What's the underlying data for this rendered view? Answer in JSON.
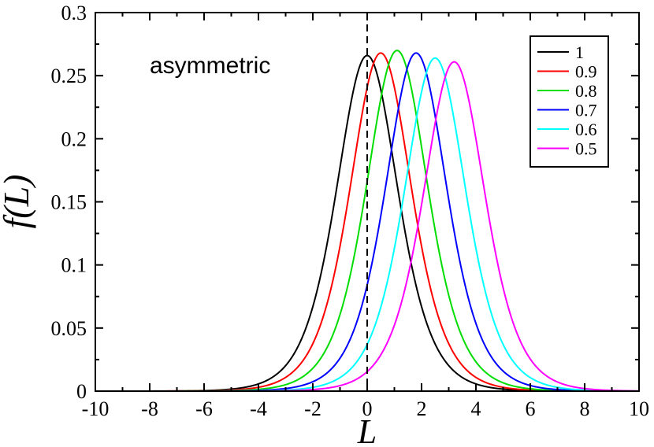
{
  "chart_data": {
    "type": "line",
    "title": "",
    "xlabel": "L",
    "ylabel": "f(L)",
    "xlim": [
      -10,
      10
    ],
    "ylim": [
      0,
      0.3
    ],
    "xticks": [
      "-10",
      "-8",
      "-6",
      "-4",
      "-2",
      "0",
      "2",
      "4",
      "6",
      "8",
      "10"
    ],
    "yticks": [
      "0",
      "0.05",
      "0.1",
      "0.15",
      "0.2",
      "0.25",
      "0.3"
    ],
    "annotation": "asymmetric",
    "reference_line": {
      "x": 0,
      "style": "dashed"
    },
    "grid": false,
    "legend_position": "top-right",
    "series": [
      {
        "name": "1",
        "color": "#000000",
        "peak_x": 0.0,
        "peak_y": 0.266,
        "points": [
          [
            -10,
            0
          ],
          [
            -8,
            0.0003
          ],
          [
            -6,
            0.003
          ],
          [
            -4,
            0.022
          ],
          [
            -3,
            0.05
          ],
          [
            -2,
            0.105
          ],
          [
            -1,
            0.19
          ],
          [
            0,
            0.266
          ],
          [
            1,
            0.19
          ],
          [
            2,
            0.105
          ],
          [
            3,
            0.05
          ],
          [
            4,
            0.022
          ],
          [
            6,
            0.003
          ],
          [
            8,
            0.0003
          ],
          [
            10,
            0
          ]
        ]
      },
      {
        "name": "0.9",
        "color": "#ff0000",
        "peak_x": 0.5,
        "peak_y": 0.268,
        "points": [
          [
            -10,
            0
          ],
          [
            -7.5,
            0.0003
          ],
          [
            -5.5,
            0.003
          ],
          [
            -3.5,
            0.022
          ],
          [
            -2.5,
            0.05
          ],
          [
            -1.5,
            0.105
          ],
          [
            -0.5,
            0.19
          ],
          [
            0.5,
            0.268
          ],
          [
            1.5,
            0.19
          ],
          [
            2.5,
            0.105
          ],
          [
            3.5,
            0.05
          ],
          [
            4.5,
            0.022
          ],
          [
            6.5,
            0.003
          ],
          [
            8.5,
            0.0003
          ],
          [
            10,
            0
          ]
        ]
      },
      {
        "name": "0.8",
        "color": "#00dd00",
        "peak_x": 1.1,
        "peak_y": 0.27,
        "points": [
          [
            -10,
            0
          ],
          [
            -6.9,
            0.0003
          ],
          [
            -4.9,
            0.003
          ],
          [
            -2.9,
            0.022
          ],
          [
            -1.9,
            0.05
          ],
          [
            -0.9,
            0.105
          ],
          [
            0.1,
            0.19
          ],
          [
            1.1,
            0.27
          ],
          [
            2.1,
            0.19
          ],
          [
            3.1,
            0.105
          ],
          [
            4.1,
            0.05
          ],
          [
            5.1,
            0.022
          ],
          [
            7.1,
            0.003
          ],
          [
            9.1,
            0.0003
          ],
          [
            10,
            0
          ]
        ]
      },
      {
        "name": "0.7",
        "color": "#0000ff",
        "peak_x": 1.8,
        "peak_y": 0.268,
        "points": [
          [
            -10,
            0
          ],
          [
            -6.2,
            0.0003
          ],
          [
            -4.2,
            0.003
          ],
          [
            -2.2,
            0.022
          ],
          [
            -1.2,
            0.05
          ],
          [
            -0.2,
            0.105
          ],
          [
            0.8,
            0.19
          ],
          [
            1.8,
            0.268
          ],
          [
            2.8,
            0.19
          ],
          [
            3.8,
            0.105
          ],
          [
            4.8,
            0.05
          ],
          [
            5.8,
            0.022
          ],
          [
            7.8,
            0.003
          ],
          [
            9.8,
            0.0003
          ],
          [
            10,
            0
          ]
        ]
      },
      {
        "name": "0.6",
        "color": "#00ffff",
        "peak_x": 2.5,
        "peak_y": 0.264,
        "points": [
          [
            -10,
            0
          ],
          [
            -5.5,
            0.0003
          ],
          [
            -3.5,
            0.003
          ],
          [
            -1.5,
            0.022
          ],
          [
            -0.5,
            0.05
          ],
          [
            0.5,
            0.105
          ],
          [
            1.5,
            0.19
          ],
          [
            2.5,
            0.264
          ],
          [
            3.5,
            0.19
          ],
          [
            4.5,
            0.105
          ],
          [
            5.5,
            0.05
          ],
          [
            6.5,
            0.022
          ],
          [
            8.5,
            0.003
          ],
          [
            10,
            0.0002
          ]
        ]
      },
      {
        "name": "0.5",
        "color": "#ff00ff",
        "peak_x": 3.2,
        "peak_y": 0.261,
        "points": [
          [
            -10,
            0
          ],
          [
            -4.8,
            0.0003
          ],
          [
            -2.8,
            0.003
          ],
          [
            -0.8,
            0.022
          ],
          [
            0.2,
            0.05
          ],
          [
            1.2,
            0.105
          ],
          [
            2.2,
            0.19
          ],
          [
            3.2,
            0.261
          ],
          [
            4.2,
            0.19
          ],
          [
            5.2,
            0.105
          ],
          [
            6.2,
            0.05
          ],
          [
            7.2,
            0.022
          ],
          [
            9.2,
            0.003
          ],
          [
            10,
            0.001
          ]
        ]
      }
    ]
  }
}
